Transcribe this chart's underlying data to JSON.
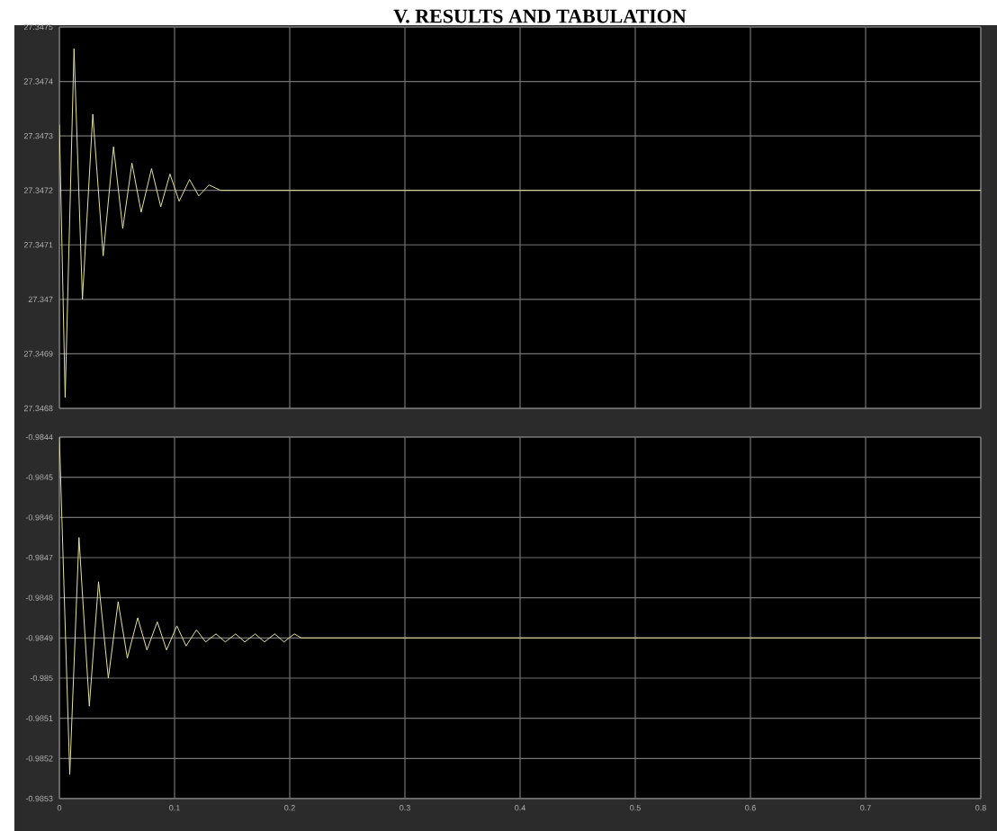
{
  "chart_data": [
    {
      "type": "line",
      "title": "V. RESULTS AND TABULATION",
      "xlim": [
        0,
        0.8
      ],
      "xticks": [
        0,
        0.1,
        0.2,
        0.3,
        0.4,
        0.5,
        0.6,
        0.7,
        0.8
      ],
      "ylim": [
        27.3468,
        27.3475
      ],
      "yticks": [
        27.3468,
        27.3469,
        27.347,
        27.3471,
        27.3472,
        27.3473,
        27.3474,
        27.3475
      ],
      "tick_labels": "y",
      "grid": true,
      "marker": "none",
      "series": [
        {
          "color": "#e6e29a",
          "x": [
            0,
            0.005,
            0.0127,
            0.02,
            0.029,
            0.038,
            0.047,
            0.055,
            0.063,
            0.071,
            0.08,
            0.088,
            0.096,
            0.104,
            0.113,
            0.121,
            0.13,
            0.14,
            0.8
          ],
          "values": [
            27.34732,
            27.34682,
            27.34746,
            27.347,
            27.34734,
            27.34708,
            27.34728,
            27.34713,
            27.34725,
            27.34716,
            27.34724,
            27.34717,
            27.34723,
            27.34718,
            27.34722,
            27.34719,
            27.34721,
            27.3472,
            27.3472
          ]
        }
      ]
    },
    {
      "type": "line",
      "xlim": [
        0,
        0.8
      ],
      "xticks": [
        0,
        0.1,
        0.2,
        0.3,
        0.4,
        0.5,
        0.6,
        0.7,
        0.8
      ],
      "ylim": [
        -0.9853,
        -0.9844
      ],
      "yticks": [
        -0.9853,
        -0.9852,
        -0.9851,
        -0.985,
        -0.9849,
        -0.9848,
        -0.9847,
        -0.9846,
        -0.9845,
        -0.9844
      ],
      "grid": true,
      "marker": "none",
      "series": [
        {
          "color": "#e6e29a",
          "x": [
            0,
            0.009,
            0.017,
            0.026,
            0.034,
            0.0425,
            0.051,
            0.059,
            0.068,
            0.076,
            0.085,
            0.093,
            0.102,
            0.11,
            0.119,
            0.127,
            0.136,
            0.144,
            0.153,
            0.161,
            0.17,
            0.178,
            0.187,
            0.195,
            0.204,
            0.21,
            0.8
          ],
          "values": [
            -0.9844,
            -0.98524,
            -0.98465,
            -0.98507,
            -0.98476,
            -0.985,
            -0.98481,
            -0.98495,
            -0.98485,
            -0.98493,
            -0.98486,
            -0.98493,
            -0.98487,
            -0.98492,
            -0.98488,
            -0.98491,
            -0.98489,
            -0.98491,
            -0.98489,
            -0.98491,
            -0.98489,
            -0.98491,
            -0.98489,
            -0.98491,
            -0.98489,
            -0.9849,
            -0.9849
          ]
        }
      ]
    }
  ]
}
